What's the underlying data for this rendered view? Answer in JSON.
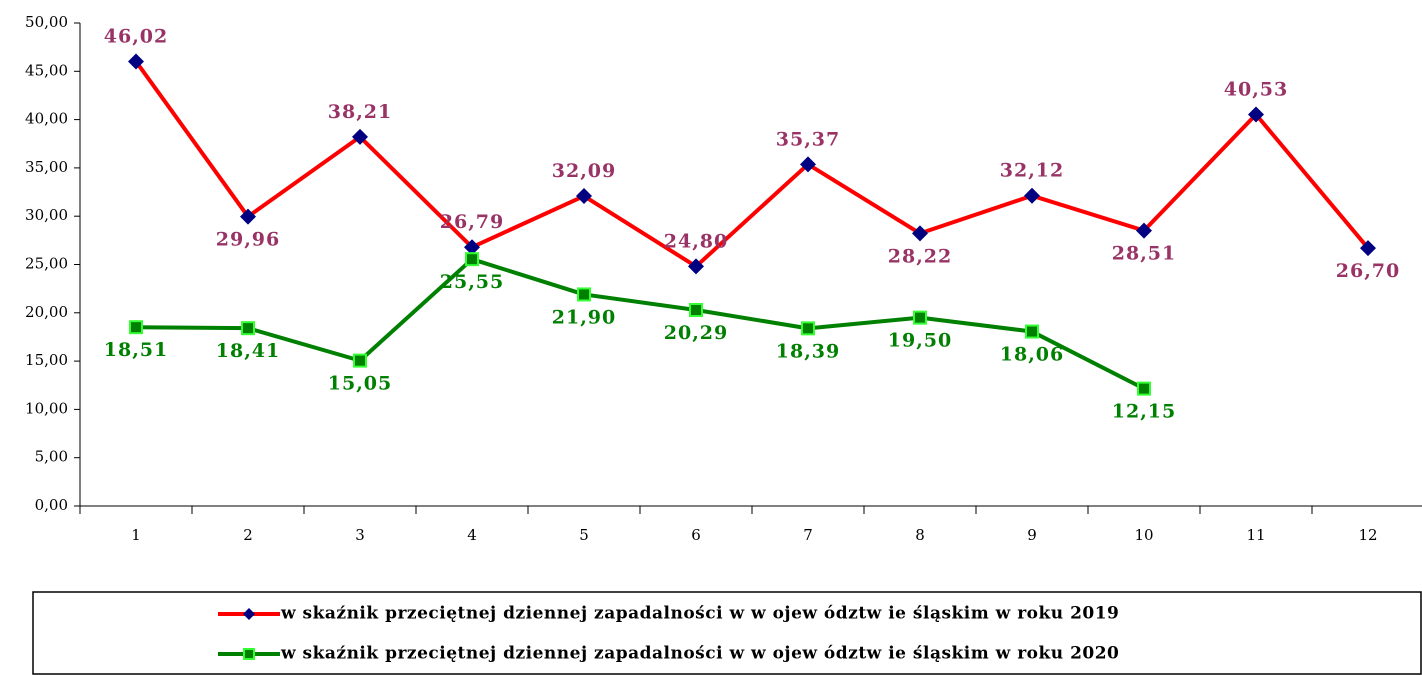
{
  "chart_data": {
    "type": "line",
    "categories": [
      "1",
      "2",
      "3",
      "4",
      "5",
      "6",
      "7",
      "8",
      "9",
      "10",
      "11",
      "12"
    ],
    "series": [
      {
        "name": "w skaźnik przeciętnej dziennej zapadalności w w ojew ództw ie śląskim w roku 2019",
        "color": "#ff0000",
        "marker": "diamond",
        "marker_color": "#000080",
        "label_color": "#993366",
        "values": [
          46.02,
          29.96,
          38.21,
          26.79,
          32.09,
          24.8,
          35.37,
          28.22,
          32.12,
          28.51,
          40.53,
          26.7
        ],
        "value_labels": [
          "46,02",
          "29,96",
          "38,21",
          "26,79",
          "32,09",
          "24,80",
          "35,37",
          "28,22",
          "32,12",
          "28,51",
          "40,53",
          "26,70"
        ]
      },
      {
        "name": "w skaźnik przeciętnej dziennej zapadalności w w ojew ództw ie śląskim w roku 2020",
        "color": "#008000",
        "marker": "square",
        "marker_color": "#008000",
        "label_color": "#008000",
        "values": [
          18.51,
          18.41,
          15.05,
          25.55,
          21.9,
          20.29,
          18.39,
          19.5,
          18.06,
          12.15,
          null,
          null
        ],
        "value_labels": [
          "18,51",
          "18,41",
          "15,05",
          "25,55",
          "21,90",
          "20,29",
          "18,39",
          "19,50",
          "18,06",
          "12,15",
          null,
          null
        ]
      }
    ],
    "ylim": [
      0,
      50
    ],
    "yticks": [
      {
        "value": 0,
        "label": "0,00"
      },
      {
        "value": 5,
        "label": "5,00"
      },
      {
        "value": 10,
        "label": "10,00"
      },
      {
        "value": 15,
        "label": "15,00"
      },
      {
        "value": 20,
        "label": "20,00"
      },
      {
        "value": 25,
        "label": "25,00"
      },
      {
        "value": 30,
        "label": "30,00"
      },
      {
        "value": 35,
        "label": "35,00"
      },
      {
        "value": 40,
        "label": "40,00"
      },
      {
        "value": 45,
        "label": "45,00"
      },
      {
        "value": 50,
        "label": "50,00"
      }
    ],
    "legend": "bottom"
  }
}
